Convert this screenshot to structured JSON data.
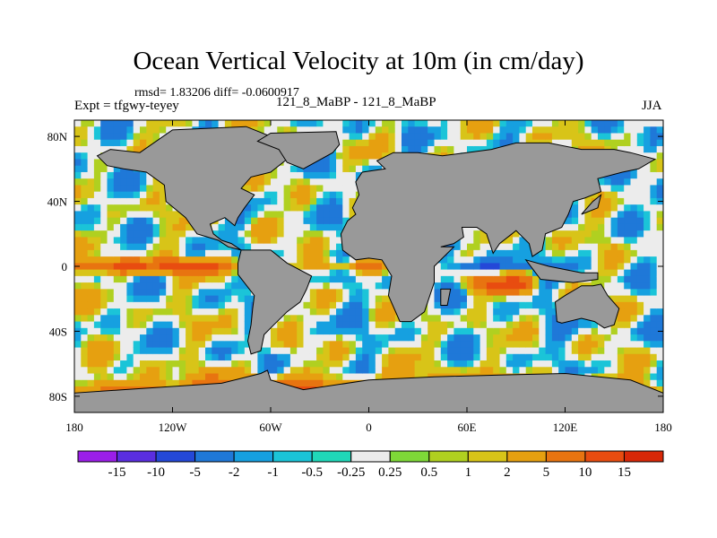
{
  "chart_data": {
    "type": "heatmap",
    "title": "Ocean Vertical Velocity at 10m (in cm/day)",
    "stats_line": "rmsd= 1.83206 diff= -0.0600917",
    "experiment_label": "Expt = tfgwy-teyey",
    "experiment_ids": "121_8_MaBP - 121_8_MaBP",
    "season": "JJA",
    "x_range": [
      -180,
      180
    ],
    "y_range": [
      -90,
      90
    ],
    "x_ticks": [
      {
        "value": -180,
        "label": "180"
      },
      {
        "value": -120,
        "label": "120W"
      },
      {
        "value": -60,
        "label": "60W"
      },
      {
        "value": 0,
        "label": "0"
      },
      {
        "value": 60,
        "label": "60E"
      },
      {
        "value": 120,
        "label": "120E"
      },
      {
        "value": 180,
        "label": "180"
      }
    ],
    "y_ticks": [
      {
        "value": 80,
        "label": "80N"
      },
      {
        "value": 40,
        "label": "40N"
      },
      {
        "value": 0,
        "label": "0"
      },
      {
        "value": -40,
        "label": "40S"
      },
      {
        "value": -80,
        "label": "80S"
      }
    ],
    "colorbar": {
      "levels": [
        "-15",
        "-10",
        "-5",
        "-2",
        "-1",
        "-0.5",
        "-0.25",
        "0.25",
        "0.5",
        "1",
        "2",
        "5",
        "10",
        "15"
      ],
      "colors": [
        "#9b1ee8",
        "#5a2ee0",
        "#2448d8",
        "#1f78d8",
        "#16a0e0",
        "#1bc4d8",
        "#20d8b8",
        "#ececec",
        "#7ed838",
        "#b0d020",
        "#d8c418",
        "#e6a010",
        "#e87410",
        "#e84c10",
        "#d82808"
      ]
    },
    "continents": [
      {
        "name": "North America",
        "polygon": [
          [
            -120,
            84
          ],
          [
            -75,
            86
          ],
          [
            -60,
            80
          ],
          [
            -40,
            82
          ],
          [
            -30,
            78
          ],
          [
            -50,
            66
          ],
          [
            -60,
            58
          ],
          [
            -72,
            55
          ],
          [
            -78,
            48
          ],
          [
            -70,
            44
          ],
          [
            -76,
            36
          ],
          [
            -80,
            30
          ],
          [
            -82,
            25
          ],
          [
            -88,
            30
          ],
          [
            -97,
            26
          ],
          [
            -95,
            20
          ],
          [
            -90,
            16
          ],
          [
            -84,
            14
          ],
          [
            -78,
            10
          ],
          [
            -86,
            12
          ],
          [
            -92,
            16
          ],
          [
            -105,
            20
          ],
          [
            -112,
            30
          ],
          [
            -124,
            40
          ],
          [
            -125,
            50
          ],
          [
            -136,
            58
          ],
          [
            -150,
            60
          ],
          [
            -160,
            62
          ],
          [
            -166,
            68
          ],
          [
            -158,
            72
          ],
          [
            -140,
            70
          ]
        ]
      },
      {
        "name": "South America",
        "polygon": [
          [
            -78,
            10
          ],
          [
            -60,
            10
          ],
          [
            -50,
            2
          ],
          [
            -35,
            -6
          ],
          [
            -38,
            -14
          ],
          [
            -42,
            -22
          ],
          [
            -50,
            -28
          ],
          [
            -58,
            -36
          ],
          [
            -64,
            -42
          ],
          [
            -66,
            -52
          ],
          [
            -72,
            -54
          ],
          [
            -74,
            -46
          ],
          [
            -72,
            -36
          ],
          [
            -71,
            -26
          ],
          [
            -70,
            -18
          ],
          [
            -80,
            -5
          ],
          [
            -80,
            2
          ]
        ]
      },
      {
        "name": "Africa-Eurasia",
        "polygon": [
          [
            -10,
            36
          ],
          [
            -6,
            44
          ],
          [
            -8,
            52
          ],
          [
            -4,
            58
          ],
          [
            10,
            60
          ],
          [
            5,
            65
          ],
          [
            15,
            70
          ],
          [
            30,
            70
          ],
          [
            45,
            68
          ],
          [
            60,
            70
          ],
          [
            75,
            72
          ],
          [
            90,
            76
          ],
          [
            110,
            76
          ],
          [
            130,
            72
          ],
          [
            150,
            72
          ],
          [
            160,
            70
          ],
          [
            175,
            66
          ],
          [
            165,
            60
          ],
          [
            155,
            58
          ],
          [
            140,
            54
          ],
          [
            142,
            46
          ],
          [
            132,
            42
          ],
          [
            125,
            40
          ],
          [
            122,
            32
          ],
          [
            118,
            24
          ],
          [
            108,
            20
          ],
          [
            106,
            10
          ],
          [
            100,
            6
          ],
          [
            98,
            14
          ],
          [
            90,
            22
          ],
          [
            80,
            14
          ],
          [
            76,
            8
          ],
          [
            72,
            20
          ],
          [
            66,
            24
          ],
          [
            57,
            24
          ],
          [
            58,
            18
          ],
          [
            52,
            14
          ],
          [
            44,
            12
          ],
          [
            52,
            12
          ],
          [
            40,
            0
          ],
          [
            40,
            -10
          ],
          [
            36,
            -22
          ],
          [
            34,
            -28
          ],
          [
            26,
            -34
          ],
          [
            19,
            -34
          ],
          [
            12,
            -18
          ],
          [
            14,
            -6
          ],
          [
            8,
            4
          ],
          [
            0,
            5
          ],
          [
            -8,
            4
          ],
          [
            -16,
            10
          ],
          [
            -17,
            20
          ],
          [
            -13,
            28
          ],
          [
            -8,
            32
          ]
        ]
      },
      {
        "name": "Australia",
        "polygon": [
          [
            114,
            -22
          ],
          [
            120,
            -18
          ],
          [
            130,
            -12
          ],
          [
            137,
            -12
          ],
          [
            142,
            -11
          ],
          [
            146,
            -18
          ],
          [
            153,
            -26
          ],
          [
            150,
            -36
          ],
          [
            144,
            -38
          ],
          [
            138,
            -34
          ],
          [
            130,
            -32
          ],
          [
            118,
            -35
          ],
          [
            115,
            -34
          ]
        ]
      },
      {
        "name": "Antarctica",
        "polygon": [
          [
            -180,
            -90
          ],
          [
            180,
            -90
          ],
          [
            180,
            -78
          ],
          [
            160,
            -70
          ],
          [
            120,
            -66
          ],
          [
            80,
            -67
          ],
          [
            40,
            -68
          ],
          [
            0,
            -70
          ],
          [
            -40,
            -76
          ],
          [
            -60,
            -70
          ],
          [
            -62,
            -64
          ],
          [
            -66,
            -66
          ],
          [
            -90,
            -72
          ],
          [
            -150,
            -76
          ],
          [
            -180,
            -78
          ]
        ]
      },
      {
        "name": "Greenland",
        "polygon": [
          [
            -60,
            82
          ],
          [
            -20,
            83
          ],
          [
            -18,
            75
          ],
          [
            -22,
            70
          ],
          [
            -40,
            60
          ],
          [
            -50,
            64
          ],
          [
            -55,
            72
          ],
          [
            -68,
            77
          ]
        ]
      },
      {
        "name": "Madagascar",
        "polygon": [
          [
            44,
            -14
          ],
          [
            50,
            -14
          ],
          [
            48,
            -24
          ],
          [
            44,
            -24
          ]
        ]
      },
      {
        "name": "Indonesia",
        "polygon": [
          [
            96,
            4
          ],
          [
            110,
            0
          ],
          [
            120,
            -2
          ],
          [
            130,
            -4
          ],
          [
            140,
            -4
          ],
          [
            140,
            -8
          ],
          [
            125,
            -10
          ],
          [
            105,
            -8
          ]
        ]
      },
      {
        "name": "Japan",
        "polygon": [
          [
            130,
            32
          ],
          [
            140,
            36
          ],
          [
            142,
            44
          ],
          [
            137,
            40
          ]
        ]
      }
    ],
    "features": [
      {
        "name": "equatorial-pacific-upwelling",
        "lon": [
          -180,
          -80
        ],
        "lat": [
          -4,
          4
        ],
        "value": 10
      },
      {
        "name": "equatorial-atlantic-upwelling",
        "lon": [
          -40,
          10
        ],
        "lat": [
          -4,
          4
        ],
        "value": 5
      },
      {
        "name": "equatorial-indian-downwelling",
        "lon": [
          50,
          100
        ],
        "lat": [
          -4,
          4
        ],
        "value": -5
      },
      {
        "name": "indian-ocean-upwelling",
        "lon": [
          60,
          100
        ],
        "lat": [
          -16,
          -6
        ],
        "value": 10
      },
      {
        "name": "southern-ocean-band",
        "lon": [
          -180,
          180
        ],
        "lat": [
          -88,
          -70
        ],
        "value": 10
      }
    ]
  }
}
